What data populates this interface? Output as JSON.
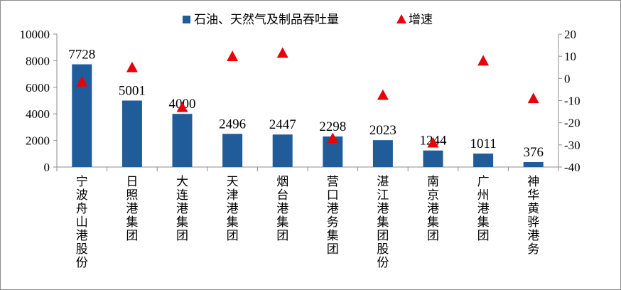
{
  "chart_data": {
    "type": "bar",
    "categories": [
      "宁波舟山港股份",
      "日照港集团",
      "大连港集团",
      "天津港集团",
      "烟台港集团",
      "营口港务集团",
      "湛江港集团股份",
      "南京港集团",
      "广州港集团",
      "神华黄骅港务"
    ],
    "series": [
      {
        "name": "石油、天然气及制品吞吐量",
        "type": "bar",
        "axis": "left",
        "color": "#1f5c99",
        "values": [
          7728,
          5001,
          4000,
          2496,
          2447,
          2298,
          2023,
          1244,
          1011,
          376
        ]
      },
      {
        "name": "增速",
        "type": "marker",
        "marker": "triangle",
        "axis": "right",
        "color": "#e8000b",
        "values": [
          -1.5,
          5,
          -13,
          10,
          11.5,
          -27,
          -7.5,
          -29,
          8,
          -9
        ]
      }
    ],
    "data_labels": [
      "7728",
      "5001",
      "4000",
      "2496",
      "2447",
      "2298",
      "2023",
      "1244",
      "1011",
      "376"
    ],
    "y_left": {
      "range": [
        0,
        10000
      ],
      "ticks": [
        "0",
        "2000",
        "4000",
        "6000",
        "8000",
        "10000"
      ]
    },
    "y_right": {
      "range": [
        -40,
        20
      ],
      "ticks": [
        "-40",
        "-30",
        "-20",
        "-10",
        "0",
        "10",
        "20"
      ]
    },
    "legend_position": "top",
    "grid": false
  }
}
